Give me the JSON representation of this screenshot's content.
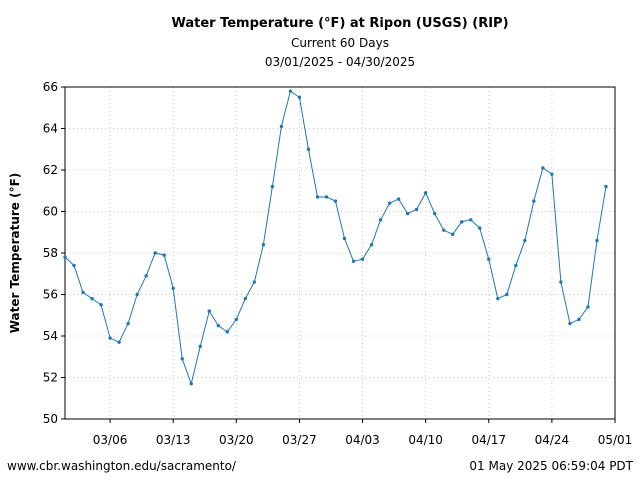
{
  "chart_data": {
    "type": "line",
    "title": "Water Temperature (°F) at Ripon (USGS) (RIP)",
    "subtitle_1": "Current 60 Days",
    "subtitle_2": "03/01/2025 - 04/30/2025",
    "xlabel": "",
    "ylabel": "Water Temperature (°F)",
    "ylim": [
      50,
      66
    ],
    "xlim": [
      "03/01/2025",
      "05/01/2025"
    ],
    "y_ticks": [
      "50",
      "52",
      "54",
      "56",
      "58",
      "60",
      "62",
      "64",
      "66"
    ],
    "x_ticks": [
      "03/06",
      "03/13",
      "03/20",
      "03/27",
      "04/03",
      "04/10",
      "04/17",
      "04/24",
      "05/01"
    ],
    "grid": true,
    "color": "#1f77b4",
    "series": [
      {
        "x": [
          "03/01/2025",
          "03/02/2025",
          "03/03/2025",
          "03/04/2025",
          "03/05/2025",
          "03/06/2025",
          "03/07/2025",
          "03/08/2025",
          "03/09/2025",
          "03/10/2025",
          "03/11/2025",
          "03/12/2025",
          "03/13/2025",
          "03/14/2025",
          "03/15/2025",
          "03/16/2025",
          "03/17/2025",
          "03/18/2025",
          "03/19/2025",
          "03/20/2025",
          "03/21/2025",
          "03/22/2025",
          "03/23/2025",
          "03/24/2025",
          "03/25/2025",
          "03/26/2025",
          "03/27/2025",
          "03/28/2025",
          "03/29/2025",
          "03/30/2025",
          "03/31/2025",
          "04/01/2025",
          "04/02/2025",
          "04/03/2025",
          "04/04/2025",
          "04/05/2025",
          "04/06/2025",
          "04/07/2025",
          "04/08/2025",
          "04/09/2025",
          "04/10/2025",
          "04/11/2025",
          "04/12/2025",
          "04/13/2025",
          "04/14/2025",
          "04/15/2025",
          "04/16/2025",
          "04/17/2025",
          "04/18/2025",
          "04/19/2025",
          "04/20/2025",
          "04/21/2025",
          "04/22/2025",
          "04/23/2025",
          "04/24/2025",
          "04/25/2025",
          "04/26/2025",
          "04/27/2025",
          "04/28/2025",
          "04/29/2025",
          "04/30/2025"
        ],
        "values": [
          57.8,
          57.4,
          56.1,
          55.8,
          55.5,
          53.9,
          53.7,
          54.6,
          56.0,
          56.9,
          58.0,
          57.9,
          56.3,
          52.9,
          51.7,
          53.5,
          55.2,
          54.5,
          54.2,
          54.8,
          55.8,
          56.6,
          58.4,
          61.2,
          64.1,
          65.8,
          65.5,
          63.0,
          60.7,
          60.7,
          60.5,
          58.7,
          57.6,
          57.7,
          58.4,
          59.6,
          60.4,
          60.6,
          59.9,
          60.1,
          60.9,
          59.9,
          59.1,
          58.9,
          59.5,
          59.6,
          59.2,
          57.7,
          55.8,
          56.0,
          57.4,
          58.6,
          60.5,
          62.1,
          61.8,
          56.6,
          54.6,
          54.8,
          55.4,
          58.6,
          61.2
        ]
      }
    ]
  },
  "footer": {
    "source": "www.cbr.washington.edu/sacramento/",
    "timestamp": "01 May 2025 06:59:04 PDT"
  }
}
